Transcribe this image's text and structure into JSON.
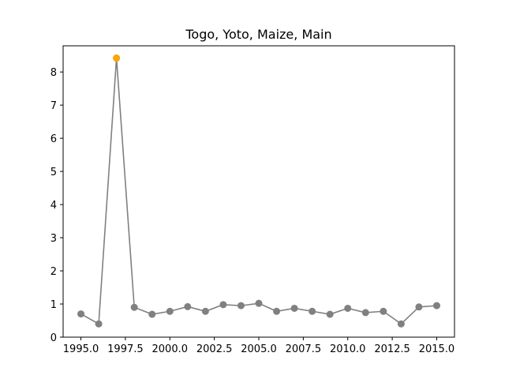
{
  "chart_data": {
    "type": "line",
    "title": "Togo, Yoto, Maize, Main",
    "xlabel": "",
    "ylabel": "",
    "xlim": [
      1994.0,
      2016.0
    ],
    "ylim": [
      0,
      8.79
    ],
    "xticks": [
      1995.0,
      1997.5,
      2000.0,
      2002.5,
      2005.0,
      2007.5,
      2010.0,
      2012.5,
      2015.0
    ],
    "xtick_labels": [
      "1995.0",
      "1997.5",
      "2000.0",
      "2002.5",
      "2005.0",
      "2007.5",
      "2010.0",
      "2012.5",
      "2015.0"
    ],
    "yticks": [
      0,
      1,
      2,
      3,
      4,
      5,
      6,
      7,
      8
    ],
    "ytick_labels": [
      "0",
      "1",
      "2",
      "3",
      "4",
      "5",
      "6",
      "7",
      "8"
    ],
    "grid": false,
    "series": [
      {
        "color": "#808080",
        "x": [
          1995,
          1996,
          1997,
          1998,
          1999,
          2000,
          2001,
          2002,
          2003,
          2004,
          2005,
          2006,
          2007,
          2008,
          2009,
          2010,
          2011,
          2012,
          2013,
          2014,
          2015
        ],
        "y": [
          0.7,
          0.4,
          8.42,
          0.9,
          0.69,
          0.78,
          0.92,
          0.78,
          0.98,
          0.95,
          1.02,
          0.78,
          0.87,
          0.78,
          0.69,
          0.87,
          0.74,
          0.78,
          0.4,
          0.91,
          0.95
        ]
      }
    ],
    "highlight": {
      "x": 1997,
      "y": 8.42,
      "color": "#FFA500"
    }
  }
}
